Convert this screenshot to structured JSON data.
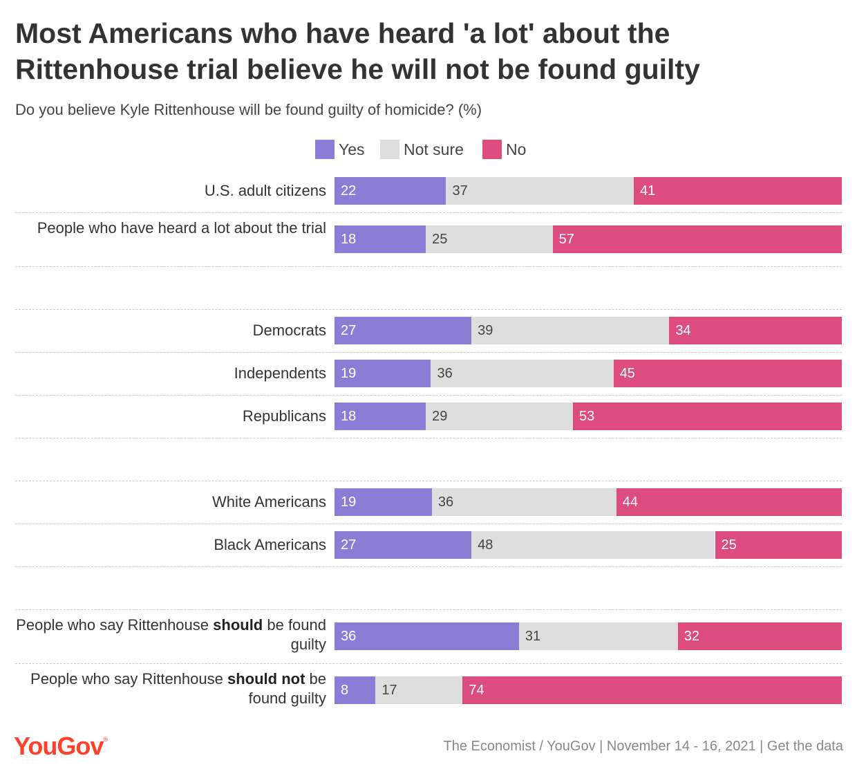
{
  "title": "Most Americans who have heard 'a lot' about the Rittenhouse trial believe he will not be found guilty",
  "subtitle": "Do you believe Kyle Rittenhouse will be found guilty of homicide? (%)",
  "footer": {
    "logo": "YouGov",
    "logo_mark": "®",
    "source": "The Economist / YouGov | November 14 - 16, 2021 | Get the data"
  },
  "chart_data": {
    "type": "bar",
    "orientation": "horizontal",
    "stacked": true,
    "legend_position": "top",
    "series": [
      {
        "name": "Yes",
        "color": "#8b7dd6",
        "values": [
          22,
          18,
          27,
          19,
          18,
          19,
          27,
          36,
          8
        ]
      },
      {
        "name": "Not sure",
        "color": "#dedede",
        "values": [
          37,
          25,
          39,
          36,
          29,
          36,
          48,
          31,
          17
        ]
      },
      {
        "name": "No",
        "color": "#dc4c7f",
        "values": [
          41,
          57,
          34,
          45,
          53,
          44,
          25,
          32,
          74
        ]
      }
    ],
    "categories": [
      {
        "group": 0,
        "parts": [
          {
            "text": "U.S. adult citizens"
          }
        ]
      },
      {
        "group": 0,
        "parts": [
          {
            "text": "People who have heard a lot about the trial"
          }
        ]
      },
      {
        "group": 1,
        "parts": [
          {
            "text": "Democrats"
          }
        ]
      },
      {
        "group": 1,
        "parts": [
          {
            "text": "Independents"
          }
        ]
      },
      {
        "group": 1,
        "parts": [
          {
            "text": "Republicans"
          }
        ]
      },
      {
        "group": 2,
        "parts": [
          {
            "text": "White Americans"
          }
        ]
      },
      {
        "group": 2,
        "parts": [
          {
            "text": "Black Americans"
          }
        ]
      },
      {
        "group": 3,
        "parts": [
          {
            "text": "People who say Rittenhouse "
          },
          {
            "text": "should",
            "bold": true
          },
          {
            "text": " be found guilty"
          }
        ]
      },
      {
        "group": 3,
        "parts": [
          {
            "text": "People who say Rittenhouse "
          },
          {
            "text": "should not",
            "bold": true
          },
          {
            "text": " be found guilty"
          }
        ]
      }
    ],
    "label_colors": {
      "Yes": "#ffffff",
      "Not sure": "#444444",
      "No": "#ffffff"
    }
  }
}
